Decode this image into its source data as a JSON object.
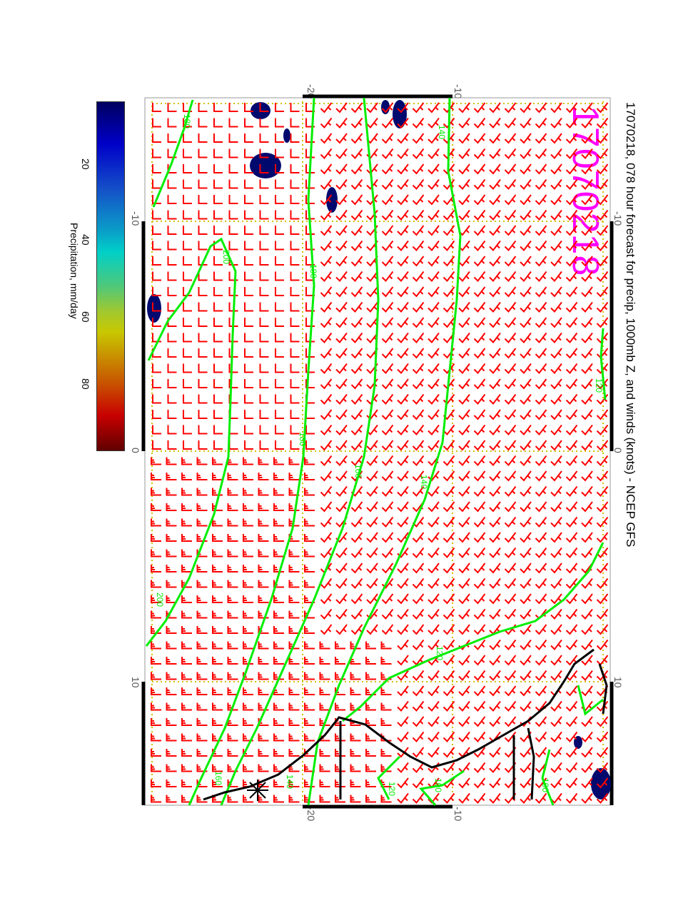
{
  "title": "17070218, 078 hour forecast for precip, 1000mb Z, and winds (knots) - NCEP GFS",
  "date_stamp": "17070218",
  "colorbar": {
    "label": "Precipitation, mm/day",
    "ticks": [
      "20",
      "40",
      "60",
      "80"
    ],
    "colors": [
      "#000060",
      "#0000c8",
      "#00d0c8",
      "#c8c800",
      "#c80000",
      "#600000"
    ]
  },
  "axes": {
    "lat_labels_top": [
      "-20",
      "-10"
    ],
    "lat_labels_bottom": [
      "-20",
      "-10"
    ],
    "lon_labels_left": [
      "-10",
      "0",
      "10"
    ],
    "lon_labels_right": [
      "-10",
      "0",
      "10"
    ]
  },
  "contour_labels": [
    "180",
    "200",
    "180",
    "160",
    "140",
    "120",
    "200",
    "180",
    "160",
    "140",
    "120",
    "100",
    "140",
    "160",
    "120",
    "100"
  ],
  "colors": {
    "contour": "#00ee00",
    "wind": "#ff0000",
    "coast": "#000000",
    "grid": "#d0c000",
    "precip": "#000a6e",
    "stamp": "#ff00ff"
  }
}
